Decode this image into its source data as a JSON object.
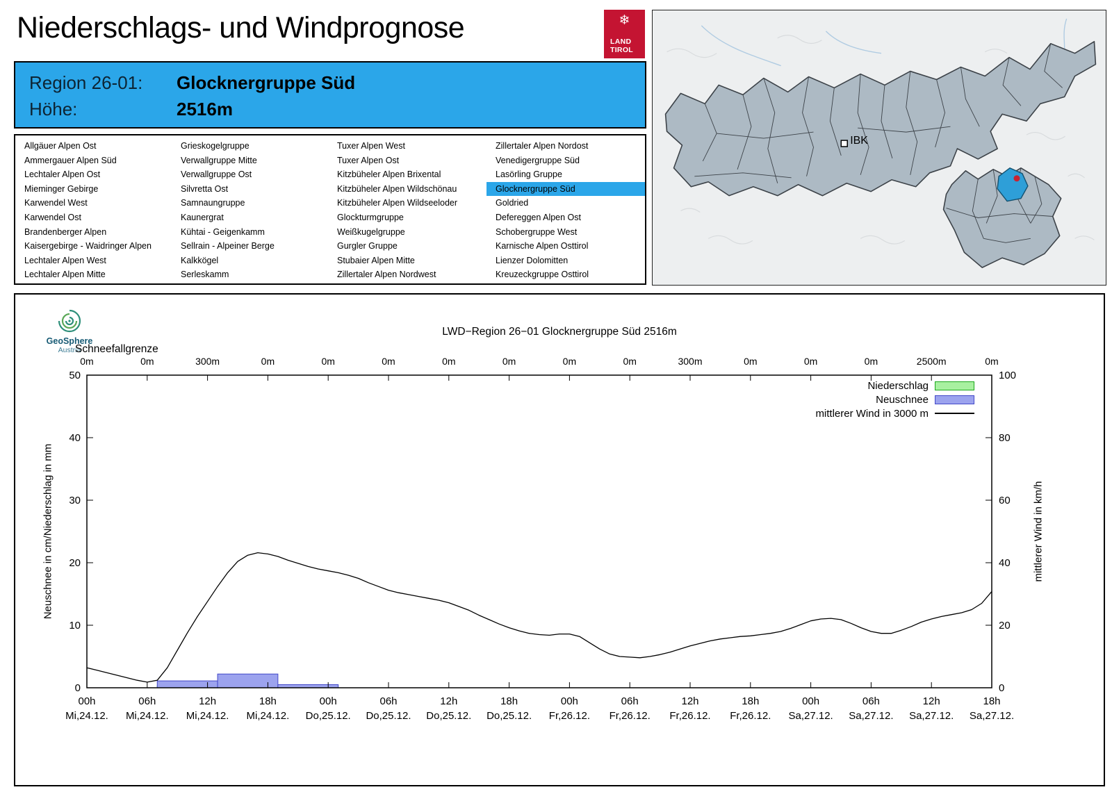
{
  "header": {
    "title": "Niederschlags- und Windprognose",
    "logo": {
      "line1": "LAND",
      "line2": "TIROL"
    }
  },
  "map": {
    "marker_label": "IBK",
    "selected_region_color": "#2E9FD8"
  },
  "info": {
    "region_label": "Region 26-01:",
    "region_value": "Glocknergruppe Süd",
    "altitude_label": "Höhe:",
    "altitude_value": "2516m"
  },
  "regions": {
    "selected": "Glocknergruppe Süd",
    "columns": [
      [
        "Allgäuer Alpen Ost",
        "Ammergauer Alpen Süd",
        "Lechtaler Alpen Ost",
        "Mieminger Gebirge",
        "Karwendel West",
        "Karwendel Ost",
        "Brandenberger Alpen",
        "Kaisergebirge - Waidringer Alpen",
        "Lechtaler Alpen West",
        "Lechtaler Alpen Mitte"
      ],
      [
        "Grieskogelgruppe",
        "Verwallgruppe Mitte",
        "Verwallgruppe Ost",
        "Silvretta Ost",
        "Samnaungruppe",
        "Kaunergrat",
        "Kühtai - Geigenkamm",
        "Sellrain - Alpeiner Berge",
        "Kalkkögel",
        "Serleskamm"
      ],
      [
        "Tuxer Alpen West",
        "Tuxer Alpen Ost",
        "Kitzbüheler Alpen Brixental",
        "Kitzbüheler Alpen Wildschönau",
        "Kitzbüheler Alpen Wildseeloder",
        "Glockturmgruppe",
        "Weißkugelgruppe",
        "Gurgler Gruppe",
        "Stubaier Alpen Mitte",
        "Zillertaler Alpen Nordwest"
      ],
      [
        "Zillertaler Alpen Nordost",
        "Venedigergruppe Süd",
        "Lasörling Gruppe",
        "Glocknergruppe Süd",
        "Goldried",
        "Defereggen Alpen Ost",
        "Schobergruppe West",
        "Karnische Alpen Osttirol",
        "Lienzer Dolomitten",
        "Kreuzeckgruppe Osttirol"
      ]
    ]
  },
  "geosphere_logo": {
    "name": "GeoSphere",
    "sub": "Austria"
  },
  "chart_data": {
    "type": "line+bar",
    "title": "LWD−Region 26−01 Glocknergruppe Süd 2516m",
    "snowline_label": "Schneefallgrenze",
    "snowline_values": [
      "0m",
      "0m",
      "300m",
      "0m",
      "0m",
      "0m",
      "0m",
      "0m",
      "0m",
      "0m",
      "300m",
      "0m",
      "0m",
      "0m",
      "2500m",
      "0m"
    ],
    "x_ticks": [
      {
        "hour": "00h",
        "date": "Mi,24.12."
      },
      {
        "hour": "06h",
        "date": "Mi,24.12."
      },
      {
        "hour": "12h",
        "date": "Mi,24.12."
      },
      {
        "hour": "18h",
        "date": "Mi,24.12."
      },
      {
        "hour": "00h",
        "date": "Do,25.12."
      },
      {
        "hour": "06h",
        "date": "Do,25.12."
      },
      {
        "hour": "12h",
        "date": "Do,25.12."
      },
      {
        "hour": "18h",
        "date": "Do,25.12."
      },
      {
        "hour": "00h",
        "date": "Fr,26.12."
      },
      {
        "hour": "06h",
        "date": "Fr,26.12."
      },
      {
        "hour": "12h",
        "date": "Fr,26.12."
      },
      {
        "hour": "18h",
        "date": "Fr,26.12."
      },
      {
        "hour": "00h",
        "date": "Sa,27.12."
      },
      {
        "hour": "06h",
        "date": "Sa,27.12."
      },
      {
        "hour": "12h",
        "date": "Sa,27.12."
      },
      {
        "hour": "18h",
        "date": "Sa,27.12."
      }
    ],
    "x_range_hours": [
      0,
      90
    ],
    "ylabel_left": "Neuschnee in cm/Niederschlag in mm",
    "ylabel_right": "mittlerer Wind in km/h",
    "ylim_left": [
      0,
      50
    ],
    "ylim_right": [
      0,
      100
    ],
    "yticks_left": [
      0,
      10,
      20,
      30,
      40,
      50
    ],
    "yticks_right": [
      0,
      20,
      40,
      60,
      80,
      100
    ],
    "grid": false,
    "legend_position": "top-right-inside",
    "legend": [
      {
        "label": "Niederschlag",
        "type": "box",
        "fill": "#A8F0A0",
        "stroke": "#1CA81C"
      },
      {
        "label": "Neuschnee",
        "type": "box",
        "fill": "#9CA3EE",
        "stroke": "#4348C8"
      },
      {
        "label": "mittlerer Wind in 3000 m",
        "type": "line",
        "stroke": "#000000"
      }
    ],
    "bars_niederschlag_mm": [
      {
        "from_h": 7,
        "to_h": 13,
        "value": 0.3
      },
      {
        "from_h": 13,
        "to_h": 19,
        "value": 0.15
      },
      {
        "from_h": 19,
        "to_h": 25,
        "value": 0.1
      }
    ],
    "bars_neuschnee_cm": [
      {
        "from_h": 7,
        "to_h": 13,
        "value": 1.1
      },
      {
        "from_h": 13,
        "to_h": 19,
        "value": 2.2
      },
      {
        "from_h": 19,
        "to_h": 25,
        "value": 0.5
      }
    ],
    "wind_series": {
      "name": "mittlerer Wind in 3000 m",
      "step_h": 1,
      "values_kmh": [
        6.4,
        5.6,
        4.8,
        4.0,
        3.2,
        2.4,
        1.8,
        2.4,
        6.4,
        12.0,
        17.6,
        22.8,
        27.6,
        32.4,
        36.8,
        40.4,
        42.4,
        43.2,
        42.8,
        42.0,
        40.8,
        39.8,
        38.8,
        38.0,
        37.4,
        36.8,
        36.0,
        35.0,
        33.6,
        32.4,
        31.2,
        30.4,
        29.8,
        29.2,
        28.6,
        28.0,
        27.2,
        26.0,
        24.8,
        23.2,
        21.8,
        20.4,
        19.2,
        18.2,
        17.4,
        17.0,
        16.8,
        17.2,
        17.2,
        16.4,
        14.4,
        12.4,
        10.8,
        10.0,
        9.8,
        9.6,
        10.0,
        10.6,
        11.4,
        12.4,
        13.4,
        14.2,
        15.0,
        15.6,
        16.0,
        16.4,
        16.6,
        17.0,
        17.4,
        18.0,
        19.0,
        20.2,
        21.4,
        22.0,
        22.2,
        21.8,
        20.6,
        19.2,
        18.0,
        17.4,
        17.4,
        18.4,
        19.6,
        21.0,
        22.0,
        22.8,
        23.4,
        24.0,
        25.0,
        27.0,
        30.8
      ]
    }
  }
}
